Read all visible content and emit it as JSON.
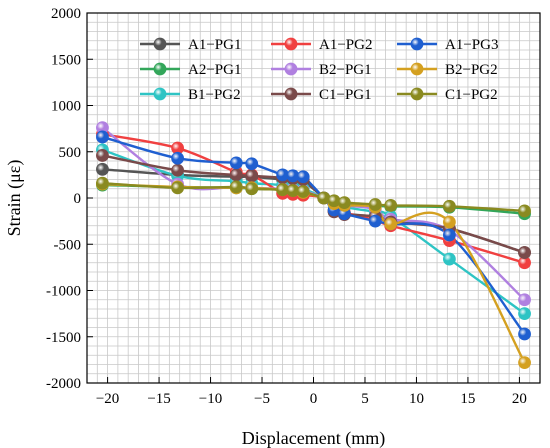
{
  "chart_data": {
    "type": "line",
    "title": "",
    "xlabel": "Displacement (mm)",
    "ylabel": "Strain (με)",
    "xlim": [
      -22,
      22
    ],
    "ylim": [
      -2000,
      2000
    ],
    "xticks": [
      -20,
      -15,
      -10,
      -5,
      0,
      5,
      10,
      15,
      20
    ],
    "yticks": [
      -2000,
      -1500,
      -1000,
      -500,
      0,
      500,
      1000,
      1500,
      2000
    ],
    "grid": true,
    "legend_position": "top-right",
    "series": [
      {
        "name": "A1−PG1",
        "color": "#555555",
        "points": [
          [
            -20.5,
            310
          ],
          [
            -13.2,
            250
          ],
          [
            -7.5,
            230
          ],
          [
            -6,
            230
          ],
          [
            -3,
            200
          ],
          [
            -2,
            190
          ],
          [
            -1,
            180
          ],
          [
            1,
            0
          ],
          [
            2,
            -140
          ],
          [
            3,
            -170
          ],
          [
            6,
            -200
          ],
          [
            7.5,
            -230
          ],
          [
            13.2,
            -330
          ],
          [
            20.5,
            -590
          ]
        ]
      },
      {
        "name": "A2−PG1",
        "color": "#33a65a",
        "points": [
          [
            -20.5,
            140
          ],
          [
            -13.2,
            120
          ],
          [
            -7.5,
            110
          ],
          [
            -6,
            100
          ],
          [
            -3,
            90
          ],
          [
            -2,
            80
          ],
          [
            -1,
            60
          ],
          [
            1,
            0
          ],
          [
            2,
            -40
          ],
          [
            3,
            -60
          ],
          [
            6,
            -80
          ],
          [
            7.5,
            -90
          ],
          [
            13.2,
            -100
          ],
          [
            20.5,
            -170
          ]
        ]
      },
      {
        "name": "B1−PG2",
        "color": "#2ec4c4",
        "points": [
          [
            -20.5,
            520
          ],
          [
            -13.2,
            240
          ],
          [
            -7.5,
            180
          ],
          [
            -6,
            160
          ],
          [
            -3,
            140
          ],
          [
            -2,
            120
          ],
          [
            -1,
            100
          ],
          [
            1,
            0
          ],
          [
            2,
            -70
          ],
          [
            3,
            -100
          ],
          [
            6,
            -150
          ],
          [
            7.5,
            -200
          ],
          [
            13.2,
            -660
          ],
          [
            20.5,
            -1250
          ]
        ]
      },
      {
        "name": "A1−PG2",
        "color": "#f04040",
        "points": [
          [
            -20.5,
            690
          ],
          [
            -13.2,
            540
          ],
          [
            -7.5,
            280
          ],
          [
            -6,
            250
          ],
          [
            -3,
            50
          ],
          [
            -2,
            40
          ],
          [
            -1,
            30
          ],
          [
            1,
            0
          ],
          [
            2,
            -140
          ],
          [
            3,
            -160
          ],
          [
            6,
            -240
          ],
          [
            7.5,
            -300
          ],
          [
            13.2,
            -460
          ],
          [
            20.5,
            -700
          ]
        ]
      },
      {
        "name": "B2−PG1",
        "color": "#b080e0",
        "points": [
          [
            -20.5,
            760
          ],
          [
            -13.2,
            150
          ],
          [
            -7.5,
            120
          ],
          [
            -6,
            110
          ],
          [
            -3,
            100
          ],
          [
            -2,
            90
          ],
          [
            -1,
            80
          ],
          [
            1,
            0
          ],
          [
            2,
            -60
          ],
          [
            3,
            -80
          ],
          [
            6,
            -120
          ],
          [
            7.5,
            -230
          ],
          [
            13.2,
            -350
          ],
          [
            20.5,
            -1100
          ]
        ]
      },
      {
        "name": "C1−PG1",
        "color": "#7a4a4a",
        "points": [
          [
            -20.5,
            460
          ],
          [
            -13.2,
            300
          ],
          [
            -7.5,
            250
          ],
          [
            -6,
            240
          ],
          [
            -3,
            220
          ],
          [
            -2,
            210
          ],
          [
            -1,
            200
          ],
          [
            1,
            0
          ],
          [
            2,
            -150
          ],
          [
            3,
            -180
          ],
          [
            6,
            -200
          ],
          [
            7.5,
            -260
          ],
          [
            13.2,
            -330
          ],
          [
            20.5,
            -590
          ]
        ]
      },
      {
        "name": "A1−PG3",
        "color": "#1f5fd0",
        "points": [
          [
            -20.5,
            660
          ],
          [
            -13.2,
            430
          ],
          [
            -7.5,
            380
          ],
          [
            -6,
            370
          ],
          [
            -3,
            250
          ],
          [
            -2,
            240
          ],
          [
            -1,
            230
          ],
          [
            1,
            0
          ],
          [
            2,
            -130
          ],
          [
            3,
            -170
          ],
          [
            6,
            -250
          ],
          [
            7.5,
            -280
          ],
          [
            13.2,
            -400
          ],
          [
            20.5,
            -1470
          ]
        ]
      },
      {
        "name": "B2−PG2",
        "color": "#d4a020",
        "points": [
          [
            -20.5,
            150
          ],
          [
            -13.2,
            120
          ],
          [
            -7.5,
            110
          ],
          [
            -6,
            110
          ],
          [
            -3,
            90
          ],
          [
            -2,
            80
          ],
          [
            -1,
            60
          ],
          [
            1,
            0
          ],
          [
            2,
            -60
          ],
          [
            3,
            -80
          ],
          [
            6,
            -100
          ],
          [
            7.5,
            -280
          ],
          [
            13.2,
            -260
          ],
          [
            20.5,
            -1780
          ]
        ]
      },
      {
        "name": "C1−PG2",
        "color": "#8a8a20",
        "points": [
          [
            -20.5,
            160
          ],
          [
            -13.2,
            110
          ],
          [
            -7.5,
            120
          ],
          [
            -6,
            100
          ],
          [
            -3,
            90
          ],
          [
            -2,
            80
          ],
          [
            -1,
            70
          ],
          [
            1,
            0
          ],
          [
            2,
            -30
          ],
          [
            3,
            -50
          ],
          [
            6,
            -70
          ],
          [
            7.5,
            -80
          ],
          [
            13.2,
            -90
          ],
          [
            20.5,
            -140
          ]
        ]
      }
    ]
  }
}
